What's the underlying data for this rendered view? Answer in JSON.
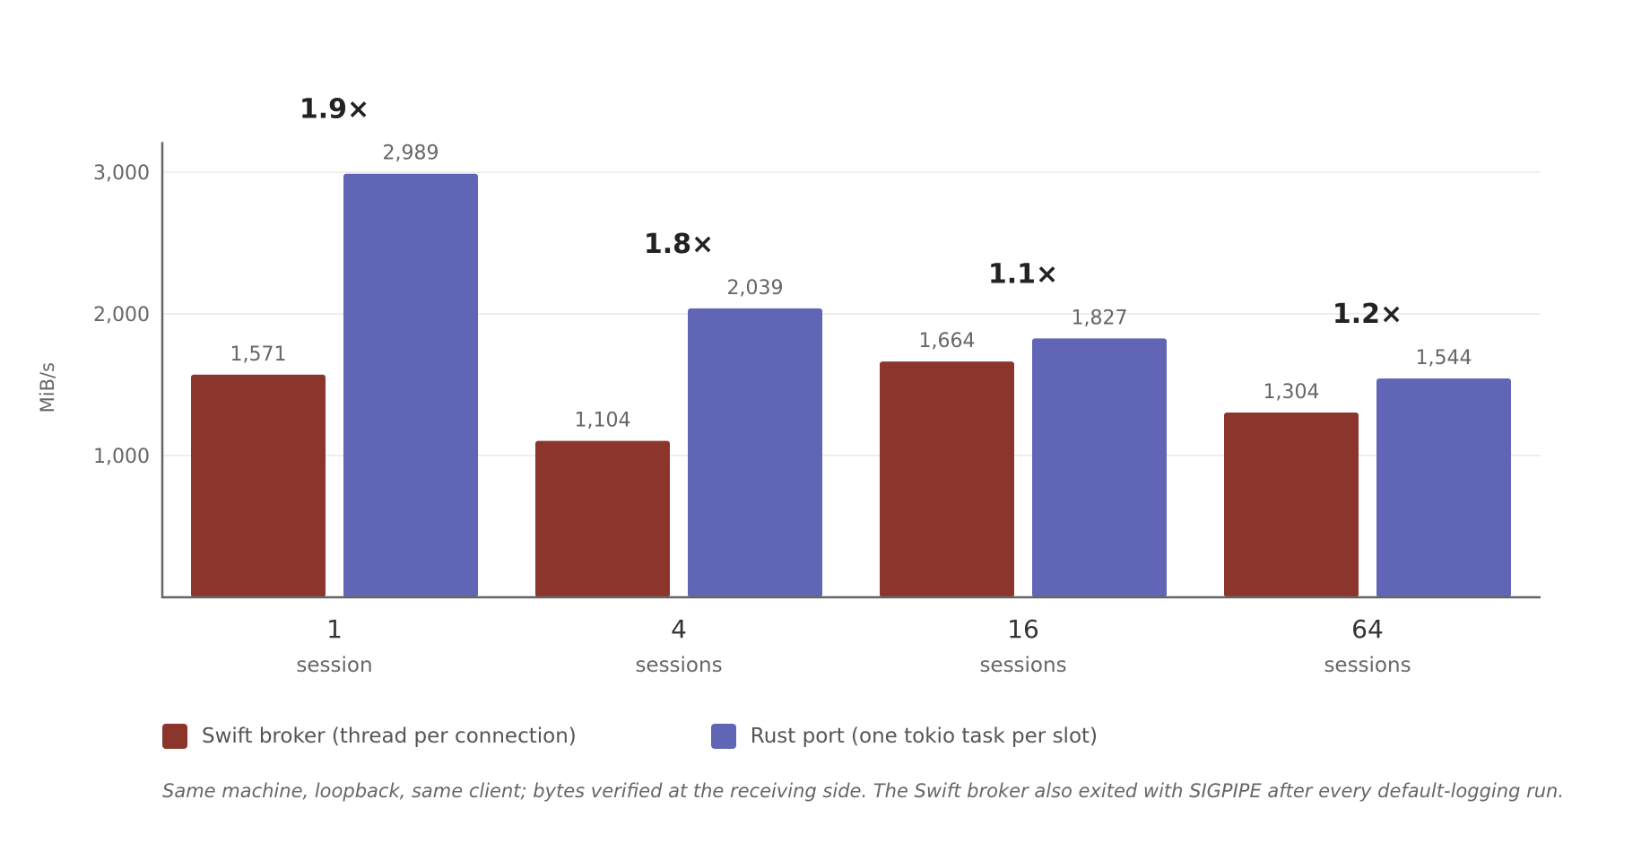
{
  "chart_data": {
    "type": "bar",
    "ylabel": "MiB/s",
    "ylim": [
      0,
      3200
    ],
    "yticks": [
      1000,
      2000,
      3000
    ],
    "yticks_text": [
      "1,000",
      "2,000",
      "3,000"
    ],
    "grid": true,
    "legend_position": "bottom-left",
    "categories": [
      {
        "value": "1",
        "unit": "session"
      },
      {
        "value": "4",
        "unit": "sessions"
      },
      {
        "value": "16",
        "unit": "sessions"
      },
      {
        "value": "64",
        "unit": "sessions"
      }
    ],
    "series": [
      {
        "name": "Swift broker (thread per connection)",
        "color": "#8b352c",
        "values": [
          1571,
          1104,
          1664,
          1304
        ],
        "labels": [
          "1,571",
          "1,104",
          "1,664",
          "1,304"
        ]
      },
      {
        "name": "Rust port (one tokio task per slot)",
        "color": "#6065b5",
        "values": [
          2989,
          2039,
          1827,
          1544
        ],
        "labels": [
          "2,989",
          "2,039",
          "1,827",
          "1,544"
        ]
      }
    ],
    "annotations": [
      "1.9×",
      "1.8×",
      "1.1×",
      "1.2×"
    ],
    "footnote": "Same machine, loopback, same client; bytes verified at the receiving side. The Swift broker also exited with SIGPIPE after every default-logging run."
  }
}
